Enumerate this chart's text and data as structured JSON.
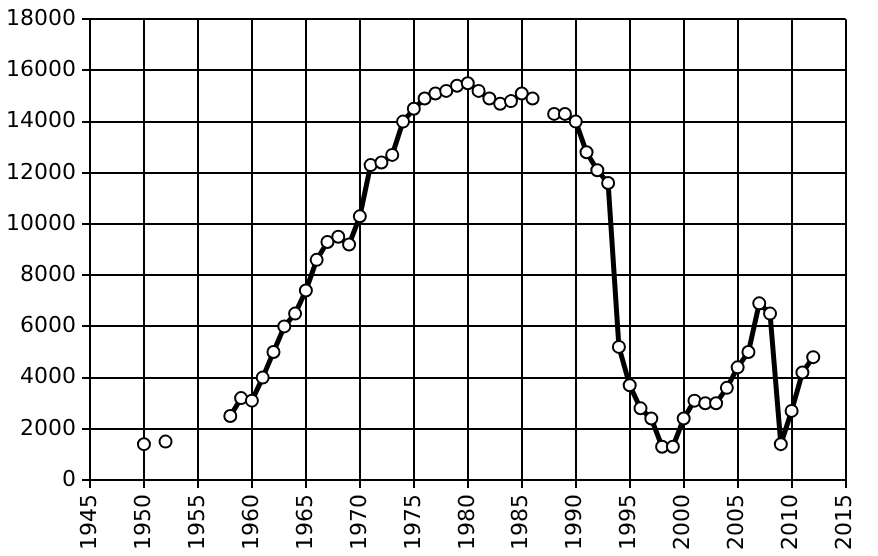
{
  "chart_data": {
    "type": "line",
    "x": [
      1950,
      1951,
      1952,
      1953,
      1958,
      1959,
      1960,
      1961,
      1962,
      1963,
      1964,
      1965,
      1966,
      1967,
      1968,
      1969,
      1970,
      1971,
      1972,
      1973,
      1974,
      1975,
      1976,
      1977,
      1978,
      1979,
      1980,
      1981,
      1982,
      1983,
      1984,
      1985,
      1986,
      1987,
      1988,
      1989,
      1990,
      1991,
      1992,
      1993,
      1994,
      1995,
      1996,
      1997,
      1998,
      1999,
      2000,
      2001,
      2002,
      2003,
      2004,
      2005,
      2006,
      2007,
      2008,
      2009,
      2010,
      2011,
      2012
    ],
    "series": [
      {
        "color": "#000000",
        "values": [
          1400,
          null,
          1500,
          null,
          2500,
          3200,
          3100,
          4000,
          5000,
          6000,
          6500,
          7400,
          8600,
          9300,
          9500,
          9200,
          10300,
          12300,
          12400,
          12700,
          14000,
          14500,
          14900,
          15100,
          15200,
          15400,
          15500,
          15200,
          14900,
          14700,
          14800,
          15100,
          14900,
          null,
          14300,
          14300,
          14000,
          12800,
          12100,
          11600,
          5200,
          3700,
          2800,
          2400,
          1300,
          1300,
          2400,
          3100,
          3000,
          3000,
          3600,
          4400,
          5000,
          6900,
          6500,
          1400,
          2700,
          4200,
          4800
        ]
      }
    ],
    "xlim": [
      1945,
      2015
    ],
    "xticks": [
      1945,
      1950,
      1955,
      1960,
      1965,
      1970,
      1975,
      1980,
      1985,
      1990,
      1995,
      2000,
      2005,
      2010,
      2015
    ],
    "ylim": [
      0,
      18000
    ],
    "yticks": [
      0,
      2000,
      4000,
      6000,
      8000,
      10000,
      12000,
      14000,
      16000,
      18000
    ],
    "grid": true,
    "legend": false,
    "marker": "circle",
    "line_style": "solid"
  }
}
